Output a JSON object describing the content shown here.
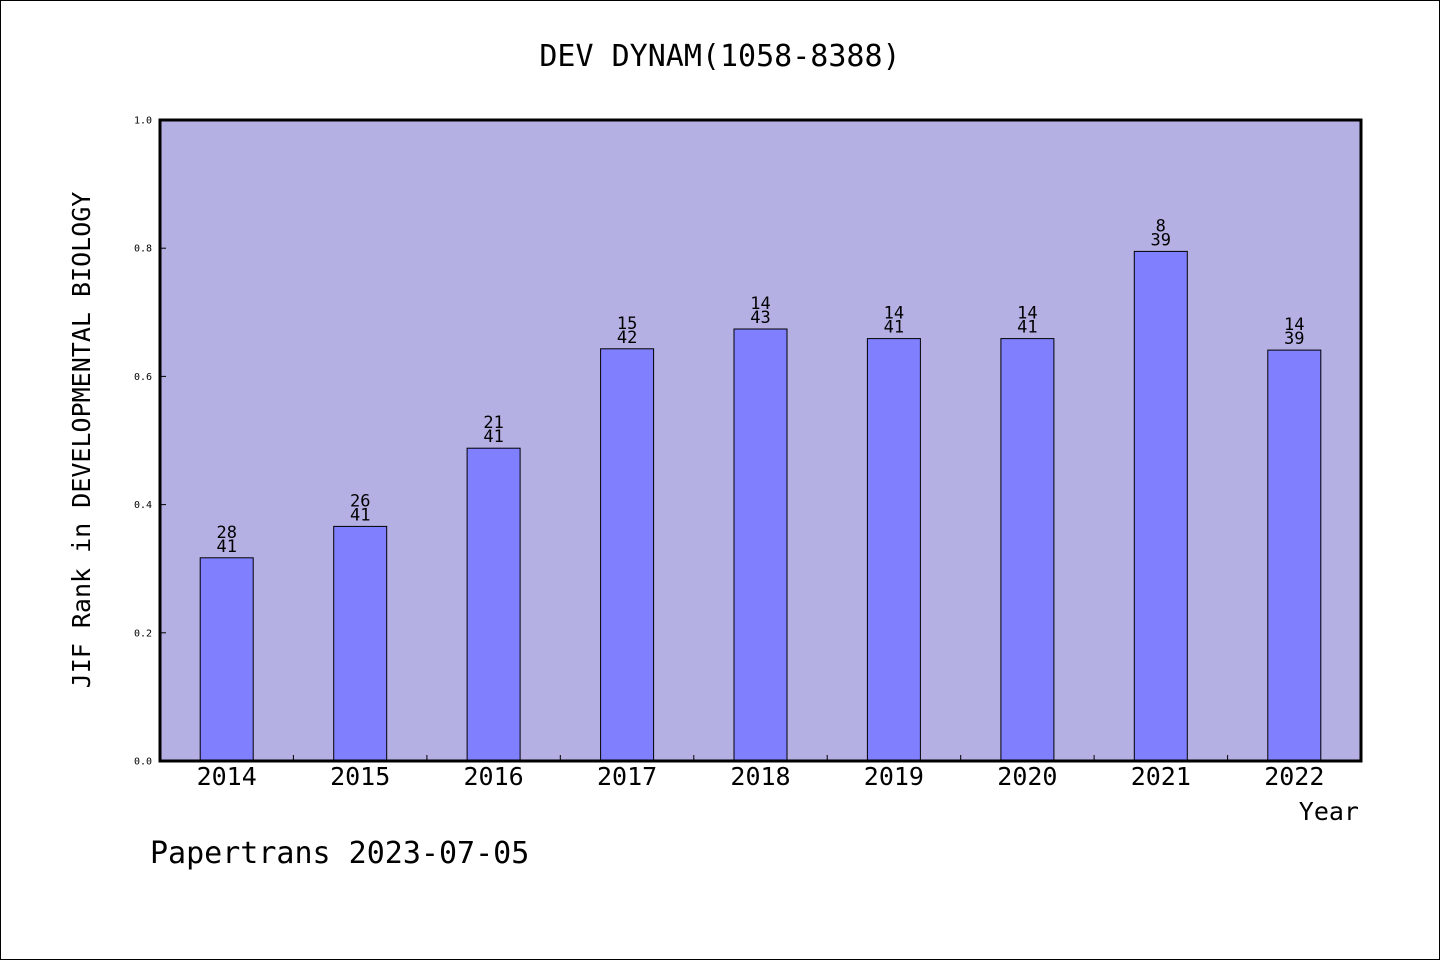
{
  "chart_data": {
    "type": "bar",
    "title": "DEV DYNAM(1058-8388)",
    "xlabel": "Year",
    "ylabel": "JIF Rank in DEVELOPMENTAL BIOLOGY",
    "ylim": [
      0.0,
      1.0
    ],
    "yticks": [
      "0.0",
      "0.2",
      "0.4",
      "0.6",
      "0.8",
      "1.0"
    ],
    "grid": false,
    "categories": [
      "2014",
      "2015",
      "2016",
      "2017",
      "2018",
      "2019",
      "2020",
      "2021",
      "2022"
    ],
    "values": [
      0.317,
      0.366,
      0.488,
      0.643,
      0.674,
      0.659,
      0.659,
      0.795,
      0.641
    ],
    "rank_labels": [
      {
        "rank": "28",
        "total": "41"
      },
      {
        "rank": "26",
        "total": "41"
      },
      {
        "rank": "21",
        "total": "41"
      },
      {
        "rank": "15",
        "total": "42"
      },
      {
        "rank": "14",
        "total": "43"
      },
      {
        "rank": "14",
        "total": "41"
      },
      {
        "rank": "14",
        "total": "41"
      },
      {
        "rank": "8",
        "total": "39"
      },
      {
        "rank": "14",
        "total": "39"
      }
    ],
    "colors": {
      "plot_background": "#b5b0e3",
      "bar": "#8080ff"
    }
  },
  "footer": "Papertrans 2023-07-05"
}
